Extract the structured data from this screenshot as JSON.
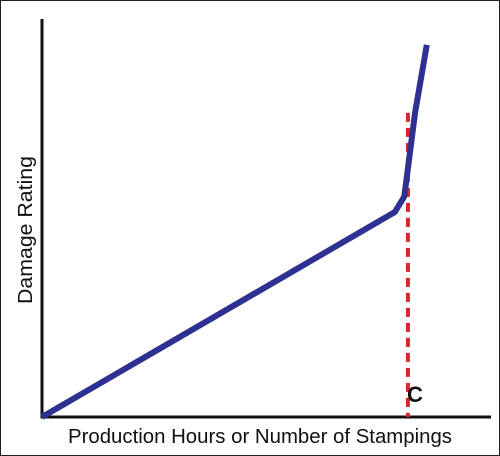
{
  "chart_data": {
    "type": "line",
    "title": "",
    "xlabel": "Production Hours or Number of Stampings",
    "ylabel": "Damage Rating",
    "xlim": [
      0,
      100
    ],
    "ylim": [
      0,
      100
    ],
    "grid": false,
    "series": [
      {
        "color": "#2E3192",
        "x": [
          0,
          78.6,
          80.7,
          83.1,
          85.7
        ],
        "y": [
          0,
          51.5,
          55.4,
          76.5,
          93.5
        ]
      }
    ],
    "threshold": {
      "x": 81.5,
      "y_top": 76.4,
      "label": "C",
      "color": "#D6282B",
      "style": "dashed"
    }
  }
}
